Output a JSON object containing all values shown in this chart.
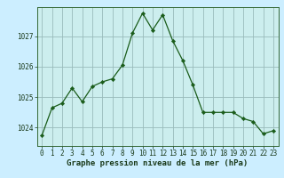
{
  "hours": [
    0,
    1,
    2,
    3,
    4,
    5,
    6,
    7,
    8,
    9,
    10,
    11,
    12,
    13,
    14,
    15,
    16,
    17,
    18,
    19,
    20,
    21,
    22,
    23
  ],
  "pressure": [
    1023.75,
    1024.65,
    1024.8,
    1025.3,
    1024.85,
    1025.35,
    1025.5,
    1025.6,
    1026.05,
    1027.1,
    1027.75,
    1027.2,
    1027.7,
    1026.85,
    1026.2,
    1025.4,
    1024.5,
    1024.5,
    1024.5,
    1024.5,
    1024.3,
    1024.2,
    1023.8,
    1023.9
  ],
  "line_color": "#1a5c1a",
  "marker_color": "#1a5c1a",
  "bg_color": "#cceeff",
  "plot_bg_color": "#cceeee",
  "grid_color": "#99bbbb",
  "title": "Graphe pression niveau de la mer (hPa)",
  "title_color": "#1a3a1a",
  "ylim_min": 1023.4,
  "ylim_max": 1027.95,
  "yticks": [
    1024,
    1025,
    1026,
    1027
  ],
  "border_color": "#336633",
  "tick_fontsize": 5.5,
  "label_fontsize": 6.5
}
